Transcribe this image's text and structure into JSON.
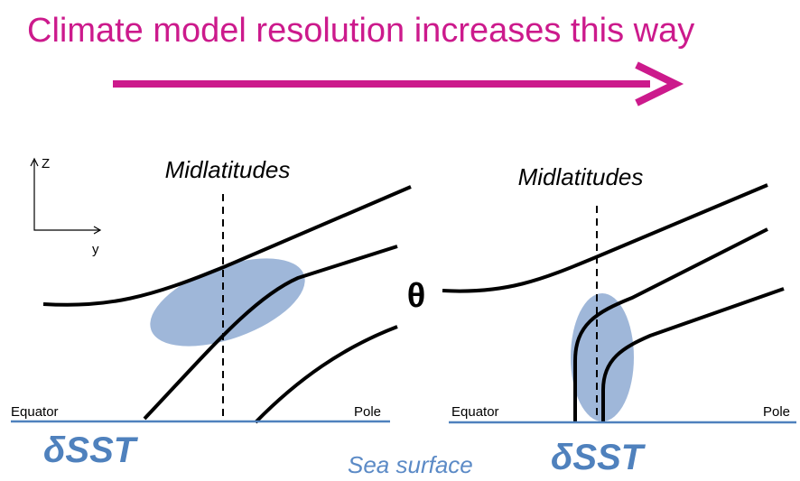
{
  "header": {
    "title": "Climate model resolution increases this way"
  },
  "axes": {
    "z": "Z",
    "y": "y"
  },
  "panels": [
    {
      "label": "Midlatitudes",
      "left": "Equator",
      "right": "Pole",
      "sst": "δSST"
    },
    {
      "label": "Midlatitudes",
      "left": "Equator",
      "right": "Pole",
      "sst": "δSST"
    }
  ],
  "theta": "θ",
  "sea_surface": "Sea surface"
}
